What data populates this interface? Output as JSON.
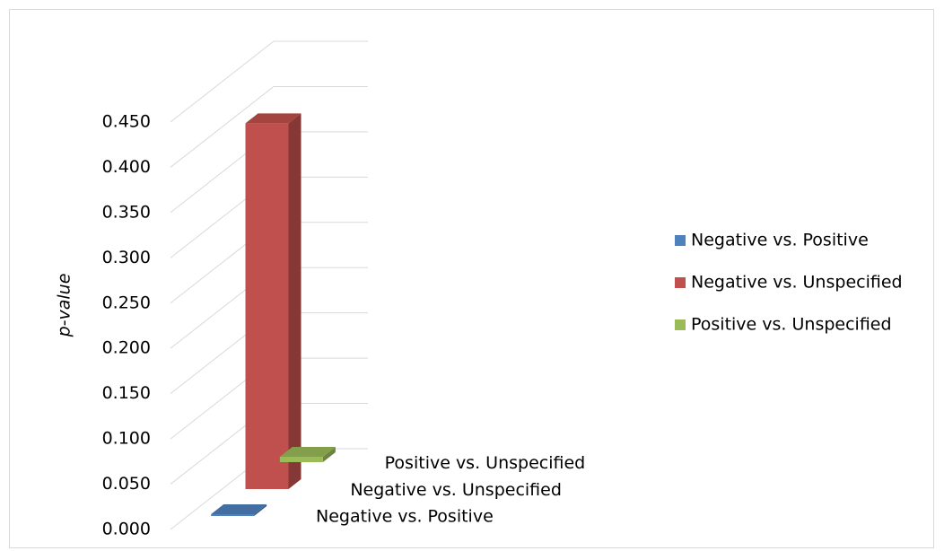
{
  "chart_data": {
    "type": "bar3d",
    "y_label": "p-value",
    "categories": [
      null
    ],
    "series": [
      {
        "name": "Negative vs. Positive",
        "color": "#4f81bd",
        "values": [
          0.002
        ]
      },
      {
        "name": "Negative vs. Unspecified",
        "color": "#c0504d",
        "values": [
          0.404
        ]
      },
      {
        "name": "Positive vs. Unspecified",
        "color": "#9bbb59",
        "values": [
          0.006
        ]
      }
    ],
    "ylim": [
      0,
      0.45
    ],
    "yticks": [
      {
        "value": 0,
        "label": "0.000"
      },
      {
        "value": 0.05,
        "label": "0.050"
      },
      {
        "value": 0.1,
        "label": "0.100"
      },
      {
        "value": 0.15,
        "label": "0.150"
      },
      {
        "value": 0.2,
        "label": "0.200"
      },
      {
        "value": 0.25,
        "label": "0.250"
      },
      {
        "value": 0.3,
        "label": "0.300"
      },
      {
        "value": 0.35,
        "label": "0.350"
      },
      {
        "value": 0.4,
        "label": "0.400"
      },
      {
        "value": 0.45,
        "label": "0.450"
      }
    ],
    "grid": true,
    "legend": "right"
  }
}
